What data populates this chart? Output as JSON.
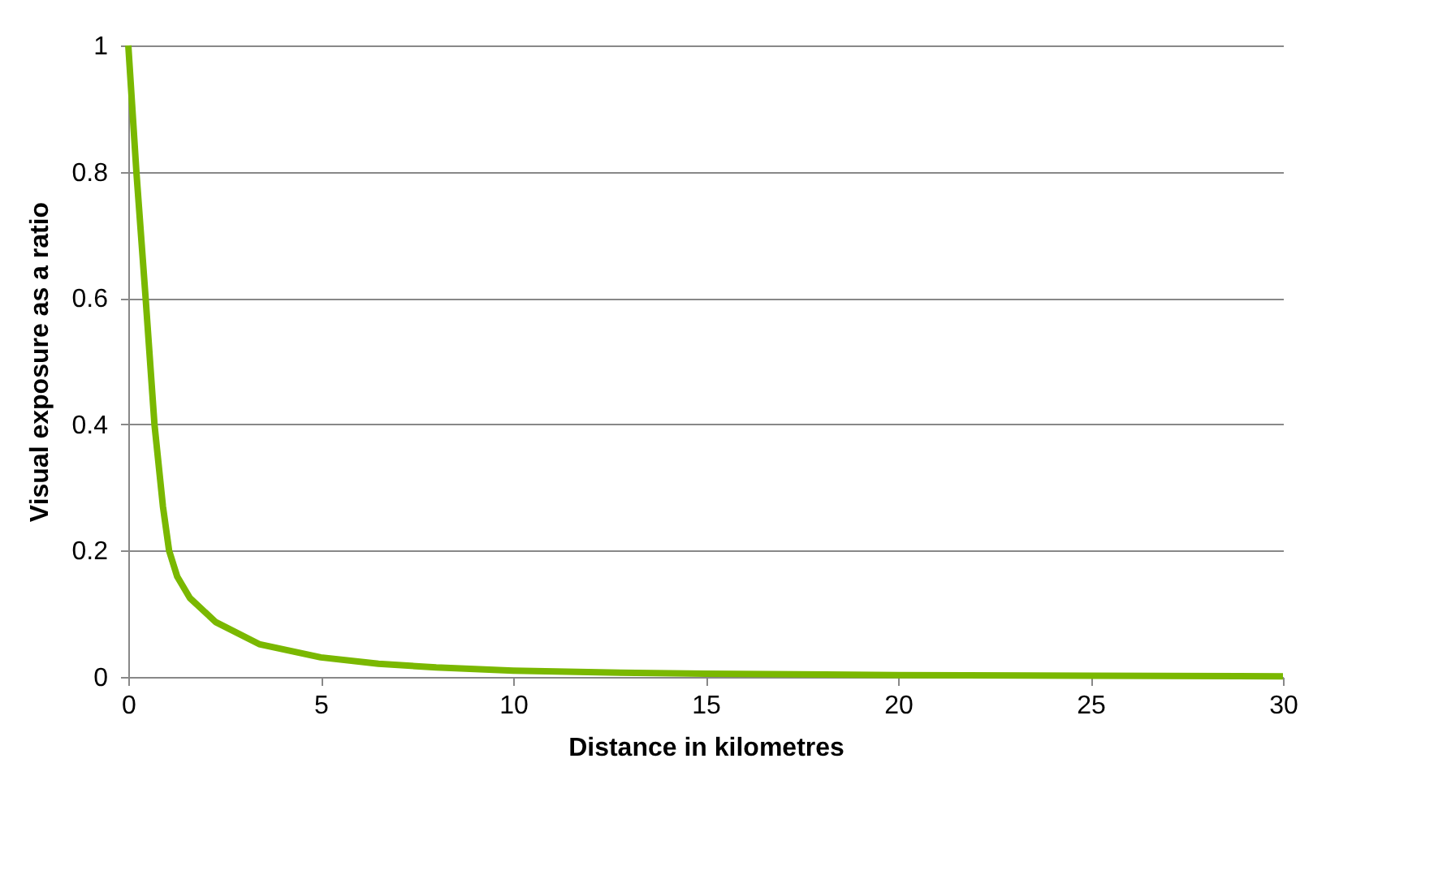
{
  "chart_data": {
    "type": "line",
    "xlabel": "Distance in kilometres",
    "ylabel": "Visual exposure as a ratio",
    "x": [
      0,
      0.21,
      0.45,
      0.68,
      0.9,
      1.06,
      1.27,
      1.6,
      2.27,
      3.4,
      5,
      6.5,
      8,
      10,
      12.5,
      15,
      20,
      25,
      30
    ],
    "series": [
      {
        "color": "#7ab800",
        "values": [
          1,
          0.8,
          0.6,
          0.4,
          0.27,
          0.2,
          0.159,
          0.125,
          0.087,
          0.052,
          0.031,
          0.021,
          0.015,
          0.01,
          0.007,
          0.005,
          0.003,
          0.002,
          0.001
        ]
      }
    ],
    "xlim": [
      0,
      30
    ],
    "xticks": [
      0,
      5,
      10,
      15,
      20,
      25,
      30
    ],
    "ylim": [
      0,
      1
    ],
    "yticks": [
      0,
      0.2,
      0.4,
      0.6,
      0.8,
      1
    ],
    "grid": "y",
    "legend": false,
    "marker": "none",
    "line_style": "solid"
  }
}
